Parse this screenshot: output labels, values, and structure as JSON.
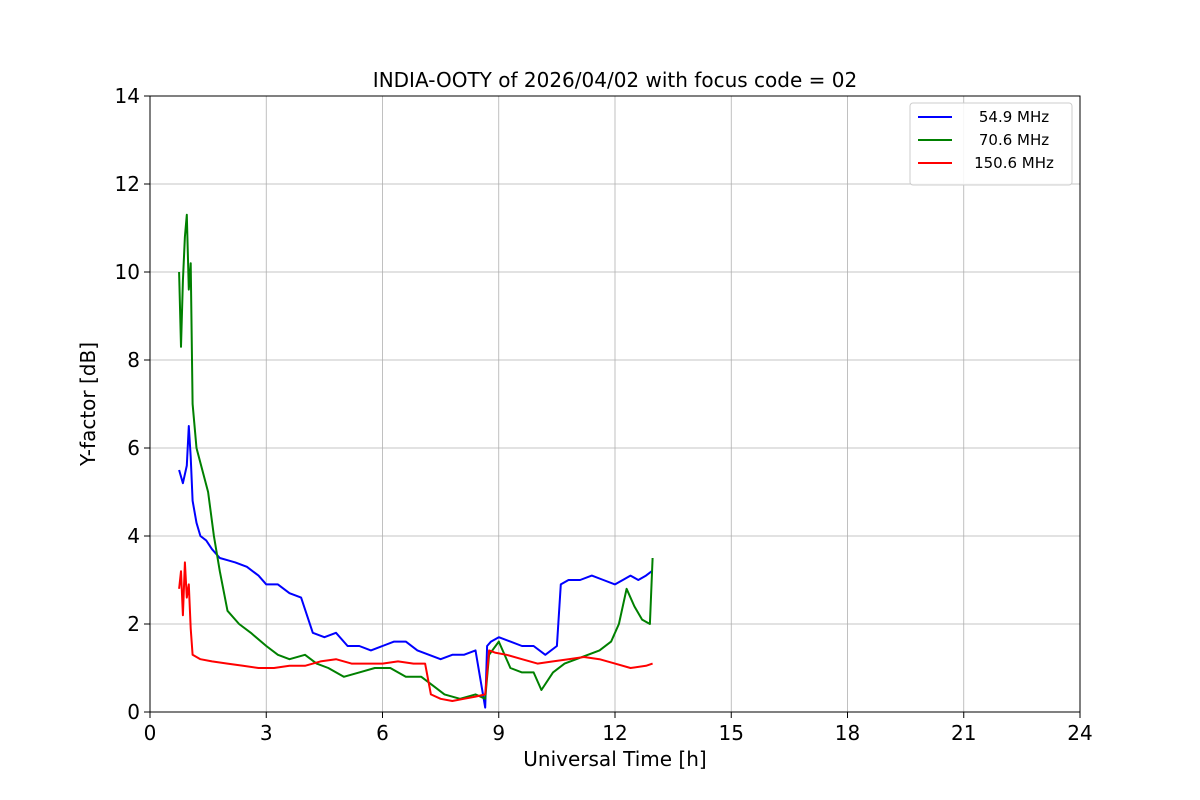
{
  "chart_data": {
    "type": "line",
    "title": "INDIA-OOTY of 2026/04/02 with focus code = 02",
    "xlabel": "Universal Time [h]",
    "ylabel": "Y-factor [dB]",
    "xlim": [
      0,
      24
    ],
    "ylim": [
      0,
      14
    ],
    "xticks": [
      "0",
      "3",
      "6",
      "9",
      "12",
      "15",
      "18",
      "21",
      "24"
    ],
    "yticks": [
      "0",
      "2",
      "4",
      "6",
      "8",
      "10",
      "12",
      "14"
    ],
    "grid": true,
    "legend_position": "top-right",
    "series": [
      {
        "name": "54.9 MHz",
        "color": "#0000ff",
        "x": [
          0.75,
          0.85,
          0.95,
          1.0,
          1.05,
          1.1,
          1.2,
          1.3,
          1.45,
          1.6,
          1.8,
          2.0,
          2.2,
          2.5,
          2.8,
          3.0,
          3.3,
          3.6,
          3.9,
          4.2,
          4.5,
          4.8,
          5.1,
          5.4,
          5.7,
          6.0,
          6.3,
          6.6,
          6.9,
          7.2,
          7.5,
          7.8,
          8.1,
          8.4,
          8.65,
          8.7,
          8.8,
          9.0,
          9.3,
          9.6,
          9.9,
          10.2,
          10.5,
          10.6,
          10.8,
          11.1,
          11.4,
          11.7,
          12.0,
          12.2,
          12.4,
          12.6,
          12.8,
          12.95
        ],
        "y": [
          5.5,
          5.2,
          5.6,
          6.5,
          5.8,
          4.8,
          4.3,
          4.0,
          3.9,
          3.7,
          3.5,
          3.45,
          3.4,
          3.3,
          3.1,
          2.9,
          2.9,
          2.7,
          2.6,
          1.8,
          1.7,
          1.8,
          1.5,
          1.5,
          1.4,
          1.5,
          1.6,
          1.6,
          1.4,
          1.3,
          1.2,
          1.3,
          1.3,
          1.4,
          0.1,
          1.5,
          1.6,
          1.7,
          1.6,
          1.5,
          1.5,
          1.3,
          1.5,
          2.9,
          3.0,
          3.0,
          3.1,
          3.0,
          2.9,
          3.0,
          3.1,
          3.0,
          3.1,
          3.2
        ]
      },
      {
        "name": "70.6 MHz",
        "color": "#008000",
        "x": [
          0.75,
          0.8,
          0.85,
          0.9,
          0.95,
          1.0,
          1.05,
          1.1,
          1.2,
          1.35,
          1.5,
          1.65,
          1.8,
          2.0,
          2.3,
          2.6,
          3.0,
          3.3,
          3.6,
          4.0,
          4.3,
          4.6,
          5.0,
          5.4,
          5.8,
          6.2,
          6.6,
          7.0,
          7.3,
          7.6,
          8.0,
          8.4,
          8.65,
          8.75,
          9.0,
          9.3,
          9.6,
          9.9,
          10.1,
          10.4,
          10.7,
          11.0,
          11.3,
          11.6,
          11.9,
          12.1,
          12.3,
          12.5,
          12.7,
          12.9,
          12.97
        ],
        "y": [
          10.0,
          8.3,
          9.8,
          10.8,
          11.3,
          9.6,
          10.2,
          7.0,
          6.0,
          5.5,
          5.0,
          4.0,
          3.2,
          2.3,
          2.0,
          1.8,
          1.5,
          1.3,
          1.2,
          1.3,
          1.1,
          1.0,
          0.8,
          0.9,
          1.0,
          1.0,
          0.8,
          0.8,
          0.6,
          0.4,
          0.3,
          0.4,
          0.3,
          1.3,
          1.6,
          1.0,
          0.9,
          0.9,
          0.5,
          0.9,
          1.1,
          1.2,
          1.3,
          1.4,
          1.6,
          2.0,
          2.8,
          2.4,
          2.1,
          2.0,
          3.5
        ]
      },
      {
        "name": "150.6 MHz",
        "color": "#ff0000",
        "x": [
          0.75,
          0.8,
          0.85,
          0.9,
          0.95,
          1.0,
          1.05,
          1.1,
          1.3,
          1.6,
          2.0,
          2.4,
          2.8,
          3.2,
          3.6,
          4.0,
          4.4,
          4.8,
          5.2,
          5.6,
          6.0,
          6.4,
          6.8,
          7.1,
          7.25,
          7.5,
          7.8,
          8.1,
          8.4,
          8.65,
          8.75,
          8.9,
          9.2,
          9.6,
          10.0,
          10.4,
          10.8,
          11.2,
          11.6,
          12.0,
          12.4,
          12.8,
          12.97
        ],
        "y": [
          2.8,
          3.2,
          2.2,
          3.4,
          2.6,
          2.9,
          1.9,
          1.3,
          1.2,
          1.15,
          1.1,
          1.05,
          1.0,
          1.0,
          1.05,
          1.05,
          1.15,
          1.2,
          1.1,
          1.1,
          1.1,
          1.15,
          1.1,
          1.1,
          0.4,
          0.3,
          0.25,
          0.3,
          0.35,
          0.4,
          1.4,
          1.35,
          1.3,
          1.2,
          1.1,
          1.15,
          1.2,
          1.25,
          1.2,
          1.1,
          1.0,
          1.05,
          1.1
        ]
      }
    ]
  }
}
